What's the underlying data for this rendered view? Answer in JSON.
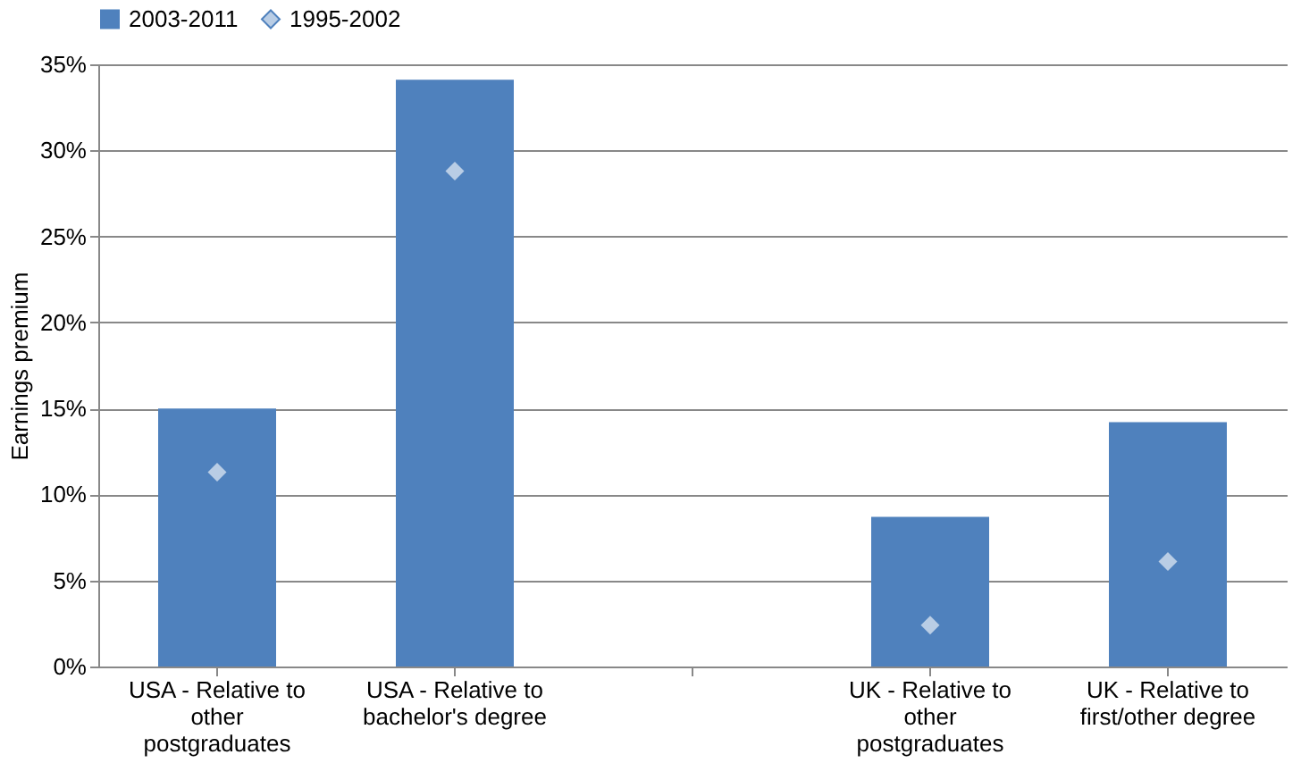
{
  "chart_data": {
    "type": "bar",
    "ylabel": "Earnings premium",
    "categories": [
      "USA - Relative to other postgraduates",
      "USA - Relative to bachelor's degree",
      null,
      "UK - Relative to other postgraduates",
      "UK - Relative to first/other degree"
    ],
    "series": [
      {
        "name": "2003-2011",
        "color": "#4f81bd",
        "values": [
          15.0,
          34.1,
          null,
          8.7,
          14.2
        ]
      },
      {
        "name": "1995-2002",
        "type": "scatter",
        "color": "#b9cde5",
        "values": [
          11.3,
          28.8,
          null,
          2.4,
          6.1
        ]
      }
    ],
    "marker": "diamond",
    "ylim": [
      0,
      35
    ],
    "yticks": [
      {
        "value": 0,
        "label": "0%"
      },
      {
        "value": 5,
        "label": "5%"
      },
      {
        "value": 10,
        "label": "10%"
      },
      {
        "value": 15,
        "label": "15%"
      },
      {
        "value": 20,
        "label": "20%"
      },
      {
        "value": 25,
        "label": "25%"
      },
      {
        "value": 30,
        "label": "30%"
      },
      {
        "value": 35,
        "label": "35%"
      }
    ],
    "grid": "y",
    "legend": "top"
  }
}
